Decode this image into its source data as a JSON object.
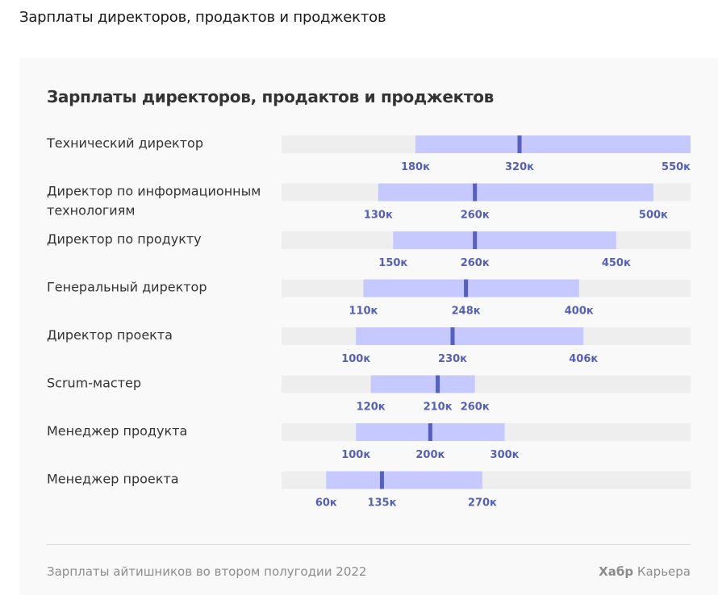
{
  "page_title": "Зарплаты директоров, продактов и проджектов",
  "footer": {
    "note": "Зарплаты айтишников во втором полугодии 2022",
    "brand_name": "Хабр",
    "brand_suffix": "Карьера"
  },
  "colors": {
    "track": "#eeeeee",
    "range": "#c5c9ff",
    "median": "#5661bd",
    "value_label": "#5560b5",
    "row_label": "#333333"
  },
  "chart_data": {
    "type": "range",
    "title": "Зарплаты директоров, продактов и проджектов",
    "unit_suffix": "к",
    "xlim": [
      0,
      550
    ],
    "grid": false,
    "rows": [
      {
        "label": "Технический директор",
        "min": 180,
        "median": 320,
        "max": 550,
        "labels": [
          "180к",
          "320к",
          "550к"
        ]
      },
      {
        "label": "Директор по информационным технологиям",
        "min": 130,
        "median": 260,
        "max": 500,
        "labels": [
          "130к",
          "260к",
          "500к"
        ]
      },
      {
        "label": "Директор по продукту",
        "min": 150,
        "median": 260,
        "max": 450,
        "labels": [
          "150к",
          "260к",
          "450к"
        ]
      },
      {
        "label": "Генеральный директор",
        "min": 110,
        "median": 248,
        "max": 400,
        "labels": [
          "110к",
          "248к",
          "400к"
        ]
      },
      {
        "label": "Директор проекта",
        "min": 100,
        "median": 230,
        "max": 406,
        "labels": [
          "100к",
          "230к",
          "406к"
        ]
      },
      {
        "label": "Scrum-мастер",
        "min": 120,
        "median": 210,
        "max": 260,
        "labels": [
          "120к",
          "210к",
          "260к"
        ]
      },
      {
        "label": "Менеджер продукта",
        "min": 100,
        "median": 200,
        "max": 300,
        "labels": [
          "100к",
          "200к",
          "300к"
        ]
      },
      {
        "label": "Менеджер проекта",
        "min": 60,
        "median": 135,
        "max": 270,
        "labels": [
          "60к",
          "135к",
          "270к"
        ]
      }
    ]
  }
}
